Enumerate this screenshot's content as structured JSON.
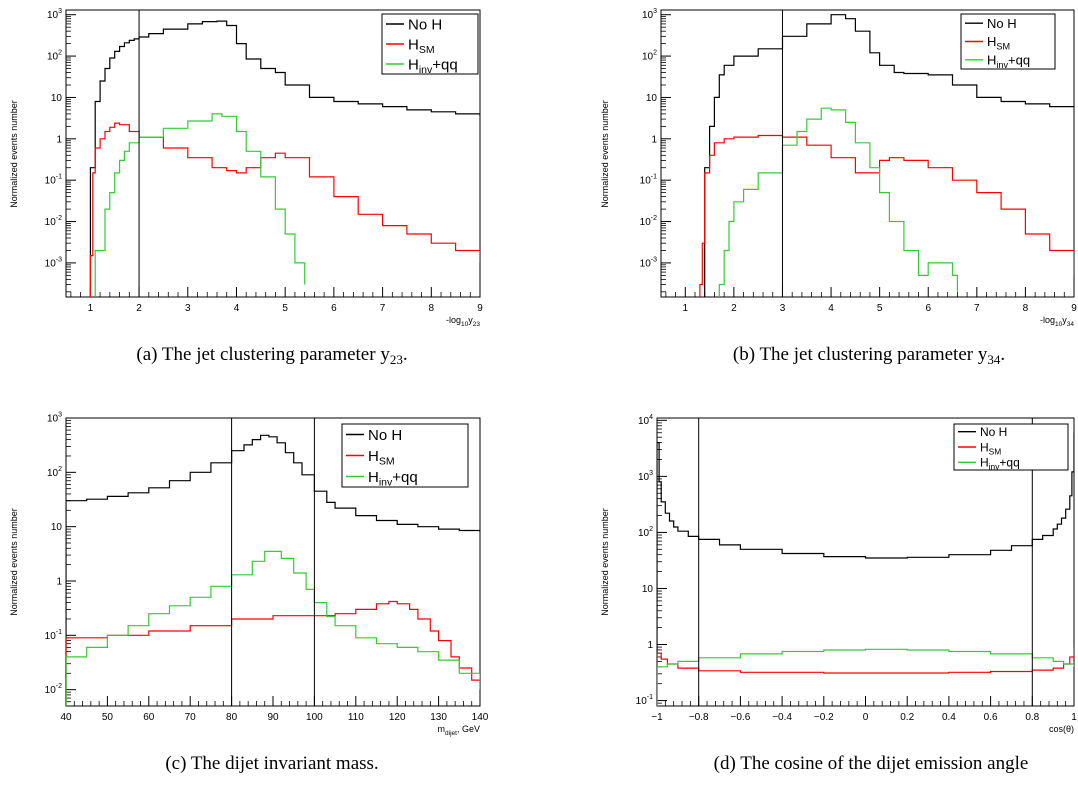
{
  "chart_data": [
    {
      "type": "line",
      "panel": "a",
      "caption": "(a) The jet clustering parameter y",
      "caption_sub": "23",
      "caption_end": ".",
      "ylabel": "Normalized events number",
      "xlabel": "-log",
      "xlabel_sub1": "10",
      "xlabel_mid": "y",
      "xlabel_sub2": "23",
      "xlim": [
        0.5,
        9
      ],
      "ylim": [
        0.00015,
        1300
      ],
      "log_y": true,
      "x_ticks": [
        1,
        2,
        3,
        4,
        5,
        6,
        7,
        8,
        9
      ],
      "y_ticks": [
        {
          "value": 0.001,
          "base": "10",
          "exp": "-3"
        },
        {
          "value": 0.01,
          "base": "10",
          "exp": "-2"
        },
        {
          "value": 0.1,
          "base": "10",
          "exp": "-1"
        },
        {
          "value": 1,
          "base": "1",
          "exp": ""
        },
        {
          "value": 10,
          "base": "10",
          "exp": ""
        },
        {
          "value": 100,
          "base": "10",
          "exp": "2"
        },
        {
          "value": 1000,
          "base": "10",
          "exp": "3"
        }
      ],
      "cut_lines": [
        2
      ],
      "legend_position": "top-right",
      "series": [
        {
          "name": "No H",
          "name_sub": "",
          "name_end": "",
          "color": "#000000",
          "x": [
            0.5,
            1.0,
            1.1,
            1.2,
            1.3,
            1.4,
            1.5,
            1.6,
            1.7,
            1.8,
            1.9,
            2.0,
            2.2,
            2.5,
            3.0,
            3.3,
            3.6,
            3.8,
            4.0,
            4.2,
            4.5,
            4.8,
            5.0,
            5.5,
            6.0,
            6.5,
            7.0,
            7.5,
            8.0,
            8.5,
            9.0
          ],
          "y": [
            null,
            0.2,
            8,
            25,
            50,
            90,
            130,
            170,
            210,
            240,
            260,
            290,
            350,
            450,
            600,
            680,
            700,
            550,
            200,
            85,
            50,
            40,
            20,
            10,
            8,
            7,
            6,
            5,
            4.5,
            4,
            3.5
          ]
        },
        {
          "name": "H",
          "name_sub": "SM",
          "name_end": "",
          "color": "#ff0000",
          "x": [
            0.5,
            1.0,
            1.05,
            1.1,
            1.2,
            1.3,
            1.4,
            1.5,
            1.6,
            1.8,
            2.0,
            2.5,
            3.0,
            3.5,
            3.8,
            4.0,
            4.2,
            4.5,
            4.8,
            5.0,
            5.5,
            6.0,
            6.5,
            7.0,
            7.5,
            8.0,
            8.5,
            9.0
          ],
          "y": [
            null,
            0.0015,
            0.15,
            0.6,
            1.0,
            1.5,
            1.9,
            2.4,
            2.2,
            1.5,
            1.1,
            0.6,
            0.35,
            0.2,
            0.17,
            0.15,
            0.2,
            0.35,
            0.45,
            0.35,
            0.12,
            0.04,
            0.015,
            0.008,
            0.005,
            0.003,
            0.002,
            0.001
          ]
        },
        {
          "name": "H",
          "name_sub": "inv",
          "name_end": "+qq",
          "color": "#33cc33",
          "x": [
            0.5,
            1.1,
            1.2,
            1.3,
            1.4,
            1.5,
            1.6,
            1.7,
            1.8,
            2.0,
            2.5,
            3.0,
            3.5,
            3.7,
            4.0,
            4.2,
            4.5,
            4.8,
            5.0,
            5.2,
            5.4
          ],
          "y": [
            null,
            0.002,
            0.002,
            0.02,
            0.05,
            0.15,
            0.3,
            0.5,
            0.8,
            1.1,
            1.8,
            2.7,
            4.0,
            3.5,
            1.5,
            0.5,
            0.12,
            0.02,
            0.005,
            0.001,
            0.0003
          ]
        }
      ]
    },
    {
      "type": "line",
      "panel": "b",
      "caption": "(b) The jet clustering parameter y",
      "caption_sub": "34",
      "caption_end": ".",
      "ylabel": "Normalized events number",
      "xlabel": "-log",
      "xlabel_sub1": "10",
      "xlabel_mid": "y",
      "xlabel_sub2": "34",
      "xlim": [
        0.5,
        9
      ],
      "ylim": [
        0.00015,
        1300
      ],
      "log_y": true,
      "x_ticks": [
        1,
        2,
        3,
        4,
        5,
        6,
        7,
        8,
        9
      ],
      "y_ticks": [
        {
          "value": 0.001,
          "base": "10",
          "exp": "-3"
        },
        {
          "value": 0.01,
          "base": "10",
          "exp": "-2"
        },
        {
          "value": 0.1,
          "base": "10",
          "exp": "-1"
        },
        {
          "value": 1,
          "base": "1",
          "exp": ""
        },
        {
          "value": 10,
          "base": "10",
          "exp": ""
        },
        {
          "value": 100,
          "base": "10",
          "exp": "2"
        },
        {
          "value": 1000,
          "base": "10",
          "exp": "3"
        }
      ],
      "cut_lines": [
        3
      ],
      "legend_position": "top-right",
      "series": [
        {
          "name": "No H",
          "name_sub": "",
          "name_end": "",
          "color": "#000000",
          "x": [
            0.5,
            1.4,
            1.5,
            1.6,
            1.7,
            1.8,
            2.0,
            2.5,
            3.0,
            3.5,
            4.0,
            4.3,
            4.5,
            4.8,
            5.0,
            5.3,
            5.5,
            6.0,
            6.5,
            7.0,
            7.5,
            8.0,
            8.5,
            9.0
          ],
          "y": [
            null,
            0.2,
            2,
            10,
            35,
            60,
            100,
            150,
            300,
            600,
            1000,
            800,
            400,
            120,
            60,
            40,
            38,
            35,
            20,
            10,
            8,
            7,
            6,
            6
          ]
        },
        {
          "name": "H",
          "name_sub": "SM",
          "name_end": "",
          "color": "#ff0000",
          "x": [
            0.5,
            1.3,
            1.35,
            1.4,
            1.5,
            1.6,
            1.8,
            2.0,
            2.5,
            3.0,
            3.5,
            4.0,
            4.5,
            5.0,
            5.2,
            5.5,
            6.0,
            6.5,
            7.0,
            7.5,
            8.0,
            8.5,
            9.0
          ],
          "y": [
            null,
            0.0003,
            0.003,
            0.15,
            0.4,
            0.8,
            1.0,
            1.1,
            1.2,
            1.1,
            0.7,
            0.35,
            0.15,
            0.3,
            0.35,
            0.3,
            0.2,
            0.1,
            0.05,
            0.02,
            0.005,
            0.002,
            0.0005
          ]
        },
        {
          "name": "H",
          "name_sub": "inv",
          "name_end": "+qq",
          "color": "#33cc33",
          "x": [
            0.5,
            1.7,
            1.8,
            1.9,
            2.0,
            2.2,
            2.5,
            3.0,
            3.3,
            3.5,
            3.8,
            4.0,
            4.3,
            4.5,
            4.8,
            5.0,
            5.2,
            5.5,
            5.8,
            6.0,
            6.5,
            6.6
          ],
          "y": [
            null,
            0.0003,
            0.002,
            0.01,
            0.03,
            0.06,
            0.15,
            0.7,
            1.5,
            3.0,
            5.5,
            5.0,
            2.5,
            0.8,
            0.2,
            0.05,
            0.01,
            0.002,
            0.0005,
            0.001,
            0.0005,
            0.0002
          ]
        }
      ]
    },
    {
      "type": "line",
      "panel": "c",
      "caption": "(c) The dijet invariant mass.",
      "caption_sub": "",
      "caption_end": "",
      "ylabel": "Normalized events number",
      "xlabel": "m",
      "xlabel_sub1": "dijet",
      "xlabel_mid": ", GeV",
      "xlabel_sub2": "",
      "xlim": [
        40,
        140
      ],
      "ylim": [
        0.005,
        1000
      ],
      "log_y": true,
      "x_ticks": [
        40,
        50,
        60,
        70,
        80,
        90,
        100,
        110,
        120,
        130,
        140
      ],
      "y_ticks": [
        {
          "value": 0.01,
          "base": "10",
          "exp": "-2"
        },
        {
          "value": 0.1,
          "base": "10",
          "exp": "-1"
        },
        {
          "value": 1,
          "base": "1",
          "exp": ""
        },
        {
          "value": 10,
          "base": "10",
          "exp": ""
        },
        {
          "value": 100,
          "base": "10",
          "exp": "2"
        },
        {
          "value": 1000,
          "base": "10",
          "exp": "3"
        }
      ],
      "cut_lines": [
        80,
        100
      ],
      "legend_position": "top-right",
      "series": [
        {
          "name": "No H",
          "name_sub": "",
          "name_end": "",
          "color": "#000000",
          "x": [
            40,
            45,
            50,
            55,
            60,
            65,
            70,
            75,
            80,
            83,
            85,
            87,
            89,
            91,
            93,
            95,
            97,
            100,
            103,
            105,
            110,
            115,
            120,
            125,
            130,
            135,
            140
          ],
          "y": [
            30,
            32,
            36,
            42,
            52,
            70,
            100,
            150,
            250,
            320,
            400,
            480,
            450,
            350,
            230,
            150,
            90,
            45,
            28,
            22,
            16,
            13,
            11,
            10,
            9,
            8.5,
            8
          ]
        },
        {
          "name": "H",
          "name_sub": "SM",
          "name_end": "",
          "color": "#ff0000",
          "x": [
            40,
            50,
            60,
            70,
            80,
            90,
            100,
            105,
            110,
            115,
            118,
            120,
            123,
            125,
            128,
            130,
            133,
            135,
            138,
            140
          ],
          "y": [
            0.09,
            0.1,
            0.12,
            0.15,
            0.2,
            0.23,
            0.23,
            0.25,
            0.3,
            0.38,
            0.42,
            0.38,
            0.3,
            0.2,
            0.12,
            0.08,
            0.04,
            0.025,
            0.015,
            0.01
          ]
        },
        {
          "name": "H",
          "name_sub": "inv",
          "name_end": "+qq",
          "color": "#33cc33",
          "x": [
            40,
            45,
            50,
            55,
            60,
            65,
            70,
            75,
            80,
            85,
            88,
            90,
            92,
            95,
            98,
            100,
            103,
            105,
            110,
            115,
            120,
            125,
            130,
            135,
            140
          ],
          "y": [
            0.04,
            0.06,
            0.1,
            0.15,
            0.25,
            0.35,
            0.5,
            0.8,
            1.3,
            2.3,
            3.5,
            3.5,
            2.6,
            1.4,
            0.7,
            0.4,
            0.22,
            0.15,
            0.09,
            0.07,
            0.06,
            0.05,
            0.035,
            0.02,
            0.01
          ]
        }
      ]
    },
    {
      "type": "line",
      "panel": "d",
      "caption": "(d) The cosine of the dijet emission angle",
      "caption_sub": "",
      "caption_end": "",
      "ylabel": "Normalized events number",
      "xlabel": "cos(θ)",
      "xlabel_sub1": "",
      "xlabel_mid": "",
      "xlabel_sub2": "",
      "xlim": [
        -1,
        1
      ],
      "ylim": [
        0.08,
        11000
      ],
      "log_y": true,
      "x_ticks": [
        -1,
        -0.8,
        -0.6,
        -0.4,
        -0.2,
        0,
        0.2,
        0.4,
        0.6,
        0.8,
        1
      ],
      "x_tick_labels": [
        "−1",
        "−0.8",
        "−0.6",
        "−0.4",
        "−0.2",
        "0",
        "0.2",
        "0.4",
        "0.6",
        "0.8",
        "1"
      ],
      "y_ticks": [
        {
          "value": 0.1,
          "base": "10",
          "exp": "-1"
        },
        {
          "value": 1,
          "base": "1",
          "exp": ""
        },
        {
          "value": 10,
          "base": "10",
          "exp": ""
        },
        {
          "value": 100,
          "base": "10",
          "exp": "2"
        },
        {
          "value": 1000,
          "base": "10",
          "exp": "3"
        },
        {
          "value": 10000,
          "base": "10",
          "exp": "4"
        }
      ],
      "cut_lines": [
        -0.8,
        0.8
      ],
      "legend_position": "top-right",
      "series": [
        {
          "name": "No H",
          "name_sub": "",
          "name_end": "",
          "color": "#000000",
          "x": [
            -1,
            -0.99,
            -0.98,
            -0.96,
            -0.94,
            -0.92,
            -0.9,
            -0.85,
            -0.8,
            -0.7,
            -0.6,
            -0.4,
            -0.2,
            0,
            0.2,
            0.4,
            0.6,
            0.7,
            0.8,
            0.85,
            0.9,
            0.92,
            0.94,
            0.96,
            0.98,
            0.99,
            1
          ],
          "y": [
            4000,
            800,
            350,
            220,
            160,
            125,
            105,
            85,
            75,
            60,
            50,
            42,
            37,
            35,
            36,
            40,
            48,
            58,
            75,
            88,
            115,
            140,
            180,
            260,
            450,
            1200,
            6000
          ]
        },
        {
          "name": "H",
          "name_sub": "SM",
          "name_end": "",
          "color": "#ff0000",
          "x": [
            -1,
            -0.98,
            -0.95,
            -0.9,
            -0.8,
            -0.6,
            -0.4,
            -0.2,
            0,
            0.2,
            0.4,
            0.6,
            0.8,
            0.9,
            0.95,
            0.98,
            1
          ],
          "y": [
            0.7,
            0.55,
            0.45,
            0.38,
            0.34,
            0.32,
            0.32,
            0.31,
            0.31,
            0.31,
            0.32,
            0.33,
            0.35,
            0.38,
            0.45,
            0.6,
            0.9
          ]
        },
        {
          "name": "H",
          "name_sub": "inv",
          "name_end": "+qq",
          "color": "#33cc33",
          "x": [
            -1,
            -0.95,
            -0.9,
            -0.8,
            -0.6,
            -0.4,
            -0.2,
            0,
            0.2,
            0.4,
            0.6,
            0.8,
            0.9,
            0.95,
            1
          ],
          "y": [
            0.4,
            0.45,
            0.5,
            0.58,
            0.68,
            0.75,
            0.8,
            0.82,
            0.8,
            0.75,
            0.68,
            0.58,
            0.5,
            0.45,
            0.4
          ]
        }
      ]
    }
  ]
}
